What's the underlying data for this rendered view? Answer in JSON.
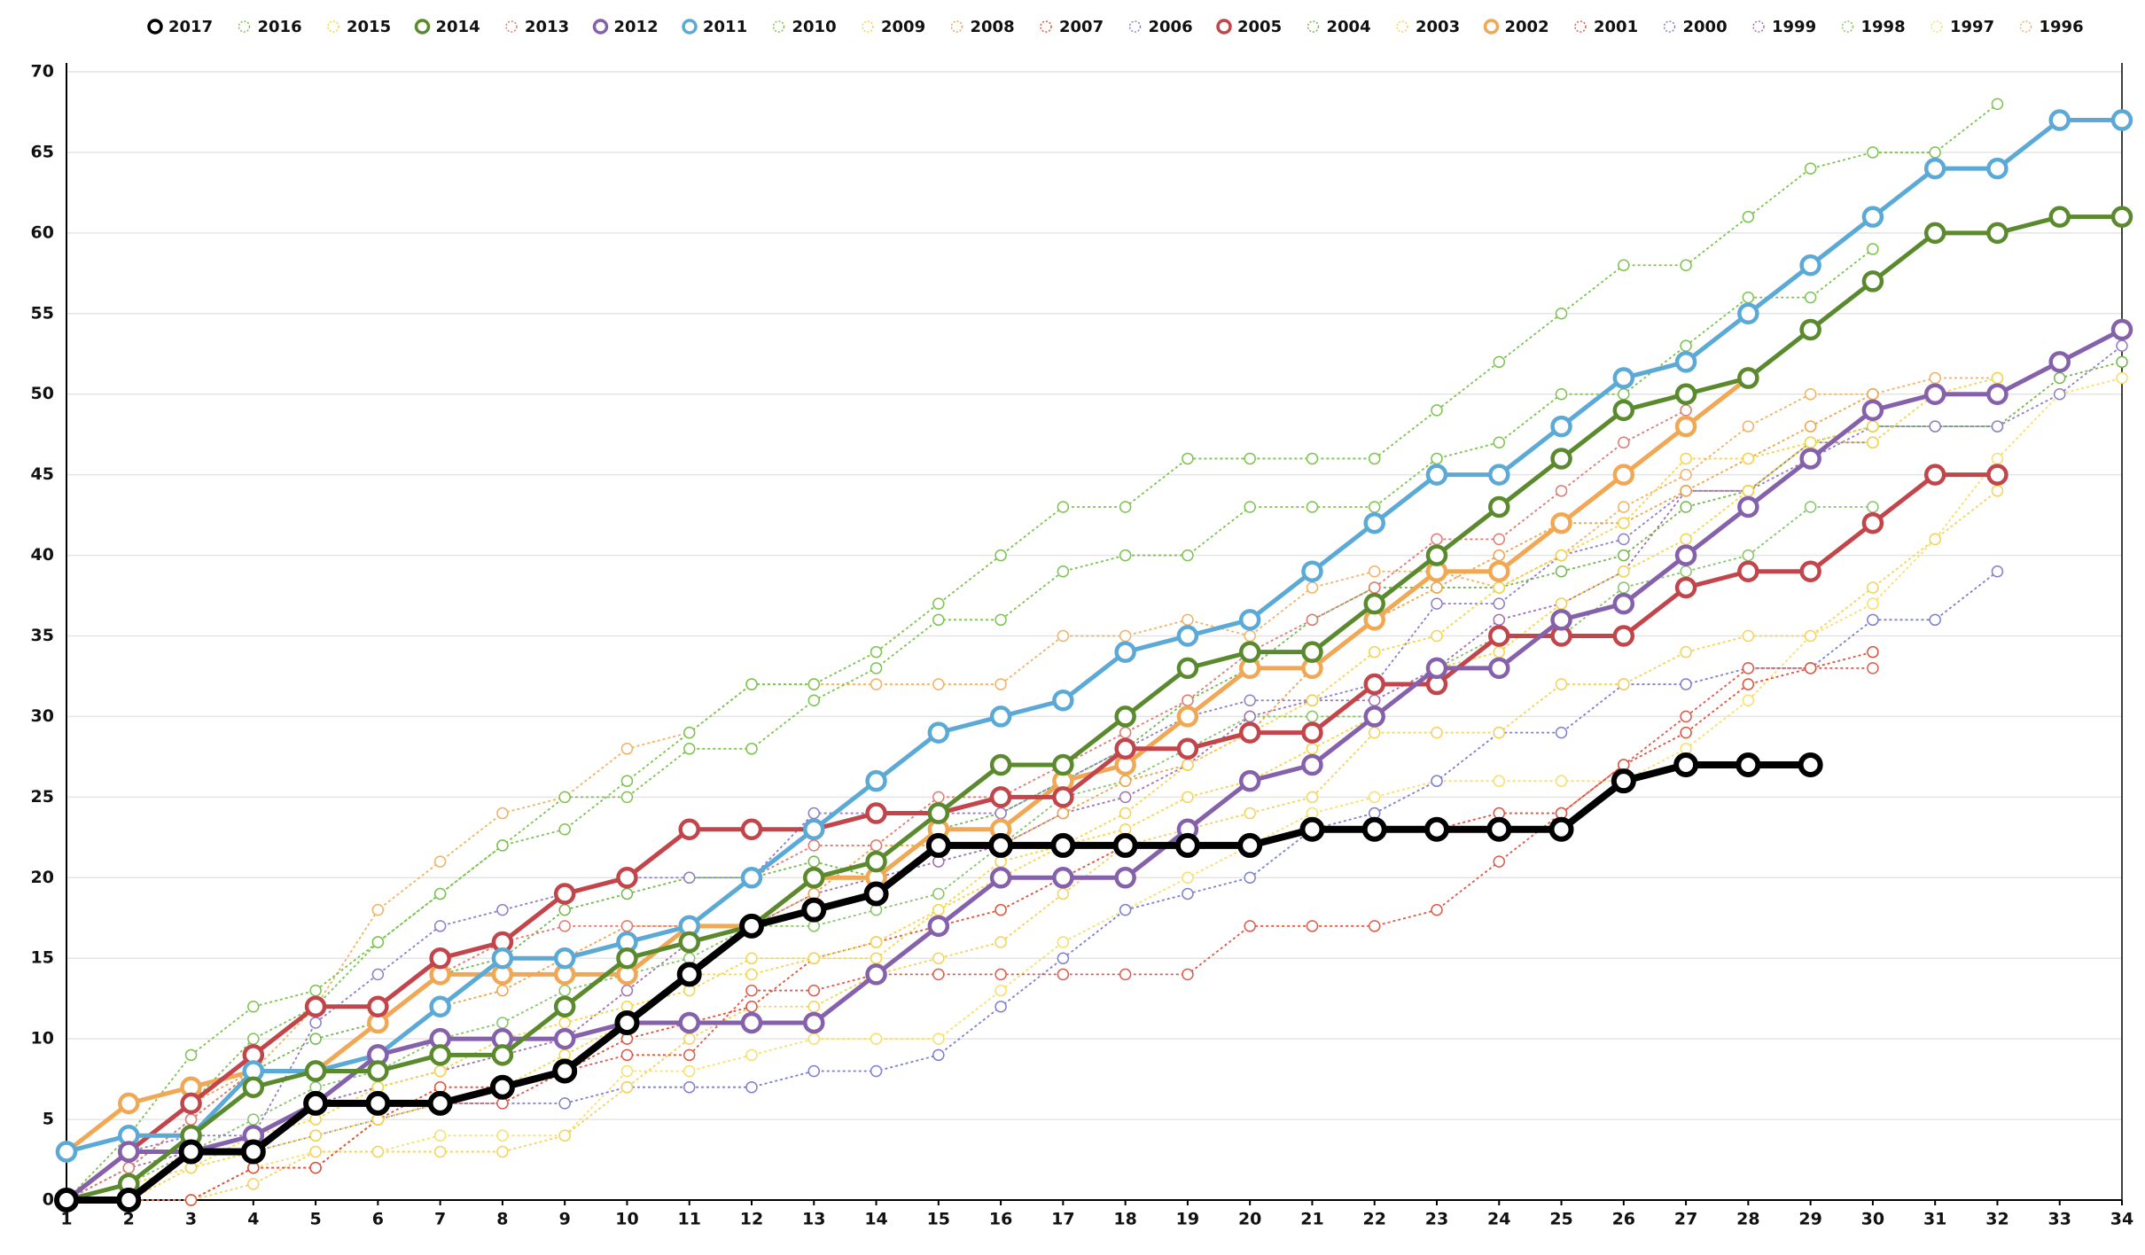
{
  "chart_data": {
    "type": "line",
    "x": [
      1,
      2,
      3,
      4,
      5,
      6,
      7,
      8,
      9,
      10,
      11,
      12,
      13,
      14,
      15,
      16,
      17,
      18,
      19,
      20,
      21,
      22,
      23,
      24,
      25,
      26,
      27,
      28,
      29,
      30,
      31,
      32,
      33,
      34
    ],
    "xlim": [
      1,
      34
    ],
    "xticks": [
      1,
      2,
      3,
      4,
      5,
      6,
      7,
      8,
      9,
      10,
      11,
      12,
      13,
      14,
      15,
      16,
      17,
      18,
      19,
      20,
      21,
      22,
      23,
      24,
      25,
      26,
      27,
      28,
      29,
      30,
      31,
      32,
      33,
      34
    ],
    "ylim": [
      0,
      70
    ],
    "yticks": [
      0,
      5,
      10,
      15,
      20,
      25,
      30,
      35,
      40,
      45,
      50,
      55,
      60,
      65,
      70
    ],
    "grid": true,
    "legend": "top",
    "series": [
      {
        "name": "2017",
        "color": "#000000",
        "line_style": "thick",
        "values": [
          0,
          0,
          3,
          3,
          6,
          6,
          6,
          7,
          8,
          11,
          14,
          17,
          18,
          19,
          22,
          22,
          22,
          22,
          22,
          22,
          23,
          23,
          23,
          23,
          23,
          26,
          27,
          27,
          27,
          null,
          null,
          null,
          null,
          null
        ]
      },
      {
        "name": "2016",
        "color": "#7cc44e",
        "line_style": "dotted",
        "values": [
          0,
          4,
          9,
          12,
          13,
          16,
          19,
          22,
          23,
          26,
          29,
          32,
          32,
          34,
          37,
          40,
          43,
          43,
          46,
          46,
          46,
          46,
          49,
          52,
          55,
          58,
          58,
          61,
          64,
          65,
          65,
          68,
          null,
          null
        ]
      },
      {
        "name": "2015",
        "color": "#f5d547",
        "line_style": "dotted",
        "values": [
          0,
          1,
          2,
          4,
          5,
          7,
          8,
          10,
          11,
          12,
          13,
          15,
          15,
          16,
          18,
          21,
          22,
          24,
          27,
          29,
          31,
          34,
          35,
          38,
          40,
          42,
          46,
          46,
          47,
          48,
          null,
          null,
          null,
          null
        ]
      },
      {
        "name": "2014",
        "color": "#5a8a2d",
        "line_style": "solid",
        "values": [
          0,
          1,
          4,
          7,
          8,
          8,
          9,
          9,
          12,
          15,
          16,
          17,
          20,
          21,
          24,
          27,
          27,
          30,
          33,
          34,
          34,
          37,
          40,
          43,
          46,
          49,
          50,
          51,
          54,
          57,
          60,
          60,
          61,
          61
        ]
      },
      {
        "name": "2013",
        "color": "#e07a72",
        "line_style": "dotted",
        "values": [
          0,
          2,
          5,
          8,
          8,
          11,
          14,
          16,
          17,
          17,
          17,
          20,
          22,
          22,
          25,
          25,
          27,
          29,
          31,
          34,
          36,
          38,
          41,
          41,
          44,
          47,
          49,
          null,
          null,
          null,
          null,
          null,
          null,
          null
        ]
      },
      {
        "name": "2012",
        "color": "#8561ab",
        "line_style": "solid",
        "values": [
          0,
          3,
          3,
          4,
          6,
          9,
          10,
          10,
          10,
          11,
          11,
          11,
          11,
          14,
          17,
          20,
          20,
          20,
          23,
          26,
          27,
          30,
          33,
          33,
          36,
          37,
          40,
          43,
          46,
          49,
          50,
          50,
          52,
          54
        ]
      },
      {
        "name": "2011",
        "color": "#5ba9d6",
        "line_style": "solid",
        "values": [
          3,
          4,
          4,
          8,
          8,
          9,
          12,
          15,
          15,
          16,
          17,
          20,
          23,
          26,
          29,
          30,
          31,
          34,
          35,
          36,
          39,
          42,
          45,
          45,
          48,
          51,
          52,
          55,
          58,
          61,
          64,
          64,
          67,
          67
        ]
      },
      {
        "name": "2010",
        "color": "#7cc44e",
        "line_style": "dotted",
        "values": [
          0,
          3,
          6,
          10,
          12,
          16,
          19,
          22,
          25,
          25,
          28,
          28,
          31,
          33,
          36,
          36,
          39,
          40,
          40,
          43,
          43,
          43,
          46,
          47,
          50,
          50,
          53,
          56,
          56,
          59,
          null,
          null,
          null,
          null
        ]
      },
      {
        "name": "2009",
        "color": "#f5d547",
        "line_style": "dotted",
        "values": [
          0,
          0,
          2,
          3,
          4,
          5,
          6,
          7,
          9,
          11,
          14,
          14,
          15,
          15,
          18,
          20,
          22,
          23,
          25,
          26,
          28,
          30,
          33,
          34,
          37,
          39,
          41,
          44,
          47,
          47,
          50,
          51,
          null,
          null
        ]
      },
      {
        "name": "2008",
        "color": "#f0a34a",
        "line_style": "dotted",
        "values": [
          0,
          3,
          6,
          8,
          8,
          9,
          12,
          13,
          15,
          17,
          17,
          17,
          19,
          22,
          22,
          22,
          24,
          26,
          27,
          29,
          33,
          36,
          38,
          40,
          42,
          42,
          44,
          46,
          48,
          50,
          null,
          null,
          null,
          null
        ]
      },
      {
        "name": "2007",
        "color": "#e0533a",
        "line_style": "dotted",
        "values": [
          0,
          0,
          0,
          2,
          2,
          5,
          7,
          7,
          8,
          10,
          11,
          12,
          15,
          16,
          17,
          18,
          20,
          22,
          22,
          22,
          23,
          23,
          23,
          24,
          24,
          27,
          29,
          32,
          33,
          34,
          null,
          null,
          null,
          null
        ]
      },
      {
        "name": "2006",
        "color": "#8f7fc7",
        "line_style": "dotted",
        "values": [
          0,
          3,
          4,
          4,
          11,
          14,
          17,
          18,
          19,
          20,
          20,
          20,
          24,
          24,
          24,
          24,
          26,
          28,
          30,
          31,
          31,
          32,
          37,
          37,
          40,
          41,
          44,
          44,
          46,
          48,
          48,
          48,
          50,
          53
        ]
      },
      {
        "name": "2005",
        "color": "#c1454a",
        "line_style": "solid",
        "values": [
          0,
          3,
          6,
          9,
          12,
          12,
          15,
          16,
          19,
          20,
          23,
          23,
          23,
          24,
          24,
          25,
          25,
          28,
          28,
          29,
          29,
          32,
          32,
          35,
          35,
          35,
          38,
          39,
          39,
          42,
          45,
          45,
          null,
          null
        ]
      },
      {
        "name": "2004",
        "color": "#74b84c",
        "line_style": "dotted",
        "values": [
          0,
          2,
          5,
          8,
          10,
          11,
          14,
          15,
          18,
          19,
          20,
          20,
          21,
          20,
          23,
          24,
          26,
          28,
          31,
          33,
          36,
          38,
          38,
          38,
          39,
          40,
          43,
          44,
          47,
          48,
          48,
          48,
          51,
          52
        ]
      },
      {
        "name": "2003",
        "color": "#f3d35a",
        "line_style": "dotted",
        "values": [
          0,
          0,
          0,
          1,
          3,
          3,
          3,
          3,
          4,
          7,
          10,
          12,
          12,
          14,
          15,
          16,
          19,
          22,
          23,
          24,
          25,
          29,
          29,
          29,
          32,
          32,
          34,
          35,
          35,
          38,
          41,
          44,
          null,
          null
        ]
      },
      {
        "name": "2002",
        "color": "#f0a855",
        "line_style": "solid",
        "values": [
          3,
          6,
          7,
          8,
          8,
          11,
          14,
          14,
          14,
          14,
          17,
          17,
          20,
          20,
          23,
          23,
          26,
          27,
          30,
          33,
          33,
          36,
          39,
          39,
          42,
          45,
          48,
          51,
          null,
          null,
          null,
          null,
          null,
          null
        ]
      },
      {
        "name": "2001",
        "color": "#e05a4a",
        "line_style": "dotted",
        "values": [
          0,
          0,
          0,
          2,
          2,
          5,
          6,
          6,
          8,
          9,
          9,
          13,
          13,
          14,
          14,
          14,
          14,
          14,
          14,
          17,
          17,
          17,
          18,
          21,
          24,
          27,
          30,
          33,
          33,
          33,
          null,
          null,
          null,
          null
        ]
      },
      {
        "name": "2000",
        "color": "#7d7fd0",
        "line_style": "dotted",
        "values": [
          0,
          0,
          3,
          3,
          4,
          5,
          6,
          6,
          6,
          7,
          7,
          7,
          8,
          8,
          9,
          12,
          15,
          18,
          19,
          20,
          23,
          24,
          26,
          29,
          29,
          32,
          32,
          33,
          33,
          36,
          36,
          39,
          null,
          null
        ]
      },
      {
        "name": "1999",
        "color": "#a070b0",
        "line_style": "dotted",
        "values": [
          0,
          2,
          3,
          4,
          6,
          7,
          8,
          9,
          10,
          13,
          16,
          17,
          19,
          20,
          21,
          22,
          24,
          25,
          27,
          30,
          31,
          31,
          33,
          36,
          37,
          39,
          44,
          44,
          47,
          47,
          null,
          null,
          null,
          null
        ]
      },
      {
        "name": "1998",
        "color": "#88c46a",
        "line_style": "dotted",
        "values": [
          0,
          1,
          3,
          5,
          7,
          8,
          10,
          11,
          13,
          14,
          15,
          17,
          17,
          18,
          19,
          22,
          25,
          26,
          28,
          30,
          30,
          30,
          33,
          35,
          35,
          38,
          39,
          40,
          43,
          43,
          null,
          null,
          null,
          null
        ]
      },
      {
        "name": "1997",
        "color": "#f8df6a",
        "line_style": "dotted",
        "values": [
          0,
          0,
          0,
          2,
          3,
          3,
          4,
          4,
          4,
          8,
          8,
          9,
          10,
          10,
          10,
          13,
          16,
          18,
          20,
          22,
          24,
          25,
          26,
          26,
          26,
          26,
          28,
          31,
          35,
          37,
          41,
          46,
          50,
          51
        ]
      },
      {
        "name": "1996",
        "color": "#f2b266",
        "line_style": "dotted",
        "values": [
          3,
          6,
          7,
          8,
          12,
          18,
          21,
          24,
          25,
          28,
          29,
          32,
          32,
          32,
          32,
          32,
          35,
          35,
          36,
          35,
          38,
          39,
          39,
          38,
          40,
          43,
          45,
          48,
          50,
          50,
          51,
          51,
          null,
          null
        ]
      }
    ]
  }
}
